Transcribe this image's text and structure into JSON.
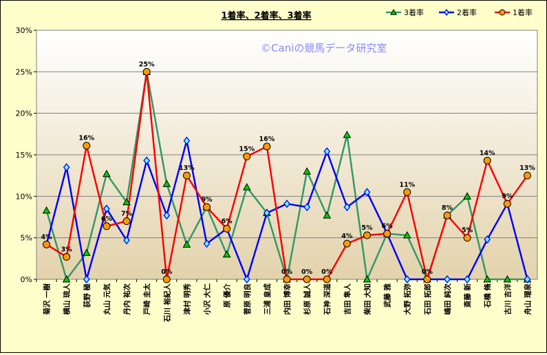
{
  "chart_data": {
    "type": "line",
    "title": "1着率、2着率、3着率",
    "watermark": "©Caniの競馬データ研究室",
    "xlabel": "",
    "ylabel": "",
    "ylim": [
      0,
      30
    ],
    "yticks": [
      "0%",
      "5%",
      "10%",
      "15%",
      "20%",
      "25%",
      "30%"
    ],
    "grid": true,
    "legend_position": "top-right",
    "categories": [
      "菊沢 一樹",
      "横山 琉人",
      "荻野 極",
      "丸山 元気",
      "丹内 祐次",
      "戸崎 圭太",
      "石川 裕紀人",
      "津村 明秀",
      "小沢 大仁",
      "原 優介",
      "菅原 明良",
      "三浦 皇成",
      "内田 博幸",
      "杉原 誠人",
      "石神 深道",
      "吉田 隼人",
      "柴田 大知",
      "武藤 雅",
      "大野 拓弥",
      "石田 拓郎",
      "嶋田 純次",
      "斎藤 新",
      "石橋 脩",
      "古川 吉洋",
      "舟山 瑠泉"
    ],
    "series": [
      {
        "name": "3着率",
        "color": "#339966",
        "marker": "triangle",
        "marker_fill": "#00CC00",
        "values": [
          8.3,
          0,
          3.2,
          12.7,
          9.3,
          25,
          11.5,
          4.2,
          8.7,
          3.0,
          11.1,
          8.0,
          0,
          13.0,
          7.7,
          17.4,
          0,
          5.5,
          5.3,
          0,
          7.7,
          10.0,
          0,
          0,
          0
        ]
      },
      {
        "name": "2着率",
        "color": "#0000FF",
        "marker": "diamond",
        "marker_fill": "#66FFFF",
        "values": [
          4.2,
          13.5,
          0,
          8.5,
          4.7,
          14.3,
          7.7,
          16.7,
          4.3,
          6.1,
          0,
          8.0,
          9.1,
          8.7,
          15.4,
          8.7,
          10.5,
          5.5,
          0,
          0,
          0,
          0,
          4.8,
          9.1,
          0
        ]
      },
      {
        "name": "1着率",
        "color": "#FF0000",
        "marker": "circle",
        "marker_fill": "#FF9900",
        "values": [
          4.2,
          2.7,
          16.1,
          6.4,
          7.0,
          25,
          0,
          12.5,
          8.7,
          6.1,
          14.8,
          16.0,
          0,
          0,
          0,
          4.3,
          5.3,
          5.5,
          10.5,
          0,
          7.7,
          5.0,
          14.3,
          9.1,
          12.5
        ],
        "labels": [
          "4%",
          "3%",
          "16%",
          "6%",
          "7%",
          "25%",
          "0%",
          "13%",
          "9%",
          "6%",
          "15%",
          "16%",
          "0%",
          "0%",
          "0%",
          "4%",
          "5%",
          "6%",
          "11%",
          "0%",
          "8%",
          "5%",
          "14%",
          "9%",
          "13%"
        ]
      }
    ]
  }
}
